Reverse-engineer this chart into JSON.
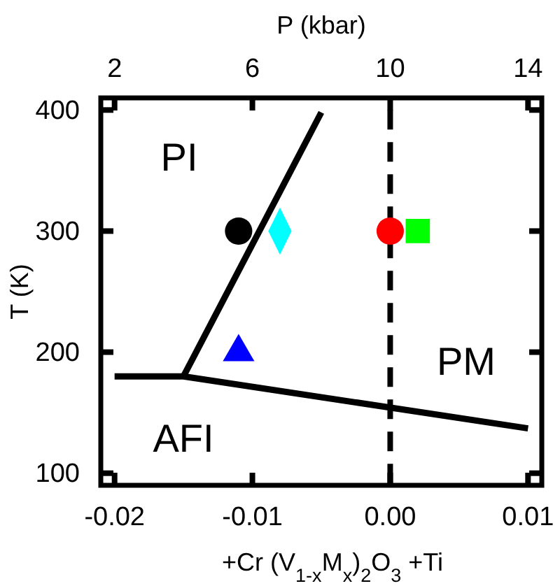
{
  "chart_data": {
    "type": "line",
    "xlabel": "+Cr   (V$_{1-x}$M$_{x}$)$_{2}$O$_{3}$   +Ti",
    "ylabel": "T (K)",
    "x2label": "P (kbar)",
    "xlim": [
      -0.021,
      0.011
    ],
    "xticks": [
      -0.02,
      -0.01,
      {
        "value": 0,
        "label": "0.00"
      },
      0.01
    ],
    "x2lim": [
      1.6,
      14.4
    ],
    "x2ticks": [
      2,
      6,
      10,
      14
    ],
    "ylim": [
      90,
      410
    ],
    "yticks": [
      100,
      200,
      300,
      400
    ],
    "series": [
      {
        "color": "#000000",
        "x": [
          -0.02,
          -0.015,
          0.01
        ],
        "values": [
          180,
          180,
          137
        ]
      },
      {
        "color": "#000000",
        "x": [
          -0.015,
          -0.005
        ],
        "values": [
          180,
          398
        ]
      },
      {
        "type": "scatter",
        "color": "#000000",
        "marker": "circle",
        "x": [
          -0.011
        ],
        "values": [
          300
        ]
      },
      {
        "type": "scatter",
        "color": "#00ffff",
        "marker": "diamond",
        "x": [
          -0.008
        ],
        "values": [
          300
        ]
      },
      {
        "type": "scatter",
        "color": "#ff0000",
        "marker": "circle",
        "x": [
          0.0
        ],
        "values": [
          300
        ]
      },
      {
        "type": "scatter",
        "color": "#00ff00",
        "marker": "square",
        "x": [
          0.002
        ],
        "values": [
          300
        ]
      },
      {
        "type": "scatter",
        "color": "#0000ff",
        "marker": "triangle",
        "x": [
          -0.011
        ],
        "values": [
          200
        ]
      }
    ],
    "ref_lines": [
      {
        "axis": "x",
        "value": 0,
        "line_style": "dashed",
        "color": "#000000"
      }
    ],
    "annotations": [
      "PI",
      "PM",
      "AFI"
    ]
  }
}
